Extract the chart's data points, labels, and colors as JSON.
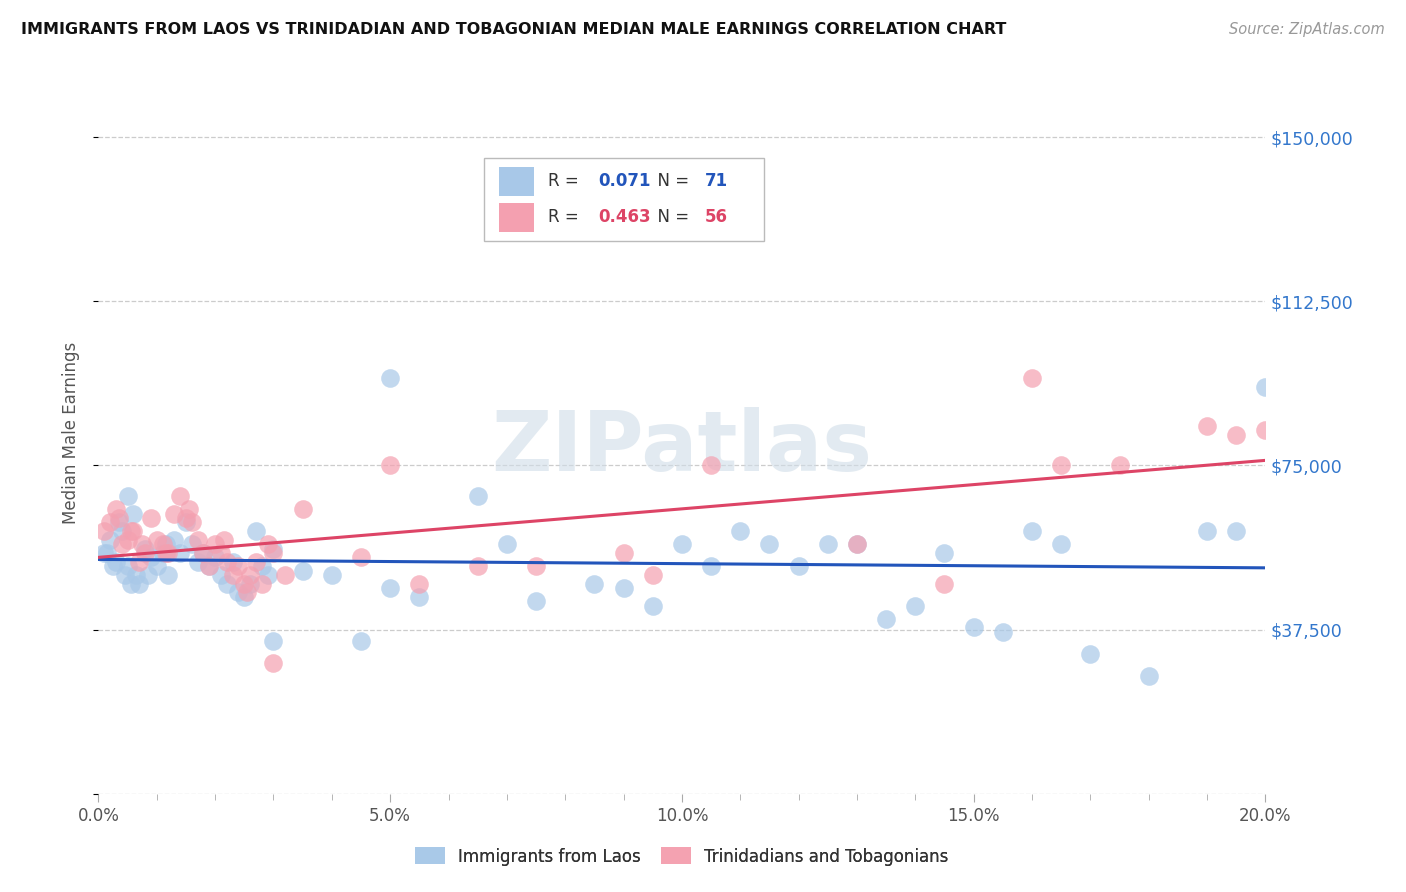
{
  "title": "IMMIGRANTS FROM LAOS VS TRINIDADIAN AND TOBAGONIAN MEDIAN MALE EARNINGS CORRELATION CHART",
  "source": "Source: ZipAtlas.com",
  "ylabel": "Median Male Earnings",
  "xlabel_ticks": [
    "0.0%",
    "5.0%",
    "10.0%",
    "15.0%",
    "20.0%"
  ],
  "xlabel_vals": [
    0.0,
    5.0,
    10.0,
    15.0,
    20.0
  ],
  "yticks": [
    0,
    37500,
    75000,
    112500,
    150000
  ],
  "ytick_labels": [
    "",
    "$37,500",
    "$75,000",
    "$112,500",
    "$150,000"
  ],
  "ylim": [
    0,
    165000
  ],
  "xlim": [
    0.0,
    20.0
  ],
  "blue_R": 0.071,
  "blue_N": 71,
  "pink_R": 0.463,
  "pink_N": 56,
  "blue_color": "#a8c8e8",
  "pink_color": "#f4a0b0",
  "blue_line_color": "#2255bb",
  "pink_line_color": "#dd4466",
  "legend_label_blue": "Immigrants from Laos",
  "legend_label_pink": "Trinidadians and Tobagonians",
  "title_color": "#111111",
  "source_color": "#999999",
  "ytick_color": "#3377cc",
  "grid_color": "#cccccc",
  "background_color": "#ffffff",
  "blue_x": [
    0.1,
    0.2,
    0.3,
    0.35,
    0.4,
    0.5,
    0.5,
    0.6,
    0.65,
    0.7,
    0.8,
    0.9,
    1.0,
    1.1,
    1.2,
    1.3,
    1.4,
    1.5,
    1.6,
    1.7,
    1.8,
    1.9,
    2.0,
    2.1,
    2.2,
    2.3,
    2.4,
    2.5,
    2.6,
    2.7,
    2.8,
    2.9,
    3.0,
    3.5,
    4.0,
    4.5,
    5.0,
    5.5,
    6.5,
    7.5,
    8.5,
    9.5,
    10.5,
    11.0,
    11.5,
    12.0,
    13.0,
    14.0,
    14.5,
    15.0,
    16.0,
    17.0,
    18.0,
    19.0,
    20.0,
    3.0,
    5.0,
    7.0,
    9.0,
    10.0,
    12.5,
    13.5,
    15.5,
    16.5,
    19.5,
    0.15,
    0.25,
    0.45,
    0.55,
    0.85,
    1.15
  ],
  "blue_y": [
    55000,
    58000,
    53000,
    62000,
    60000,
    52000,
    68000,
    64000,
    50000,
    48000,
    56000,
    54000,
    52000,
    55000,
    50000,
    58000,
    55000,
    62000,
    57000,
    53000,
    55000,
    52000,
    54000,
    50000,
    48000,
    53000,
    46000,
    45000,
    48000,
    60000,
    52000,
    50000,
    56000,
    51000,
    50000,
    35000,
    47000,
    45000,
    68000,
    44000,
    48000,
    43000,
    52000,
    60000,
    57000,
    52000,
    57000,
    43000,
    55000,
    38000,
    60000,
    32000,
    27000,
    60000,
    93000,
    35000,
    95000,
    57000,
    47000,
    57000,
    57000,
    40000,
    37000,
    57000,
    60000,
    55000,
    52000,
    50000,
    48000,
    50000,
    57000
  ],
  "pink_x": [
    0.1,
    0.2,
    0.3,
    0.4,
    0.5,
    0.6,
    0.7,
    0.8,
    0.9,
    1.0,
    1.1,
    1.2,
    1.3,
    1.4,
    1.5,
    1.6,
    1.7,
    1.8,
    1.9,
    2.0,
    2.1,
    2.2,
    2.3,
    2.4,
    2.5,
    2.6,
    2.7,
    2.8,
    2.9,
    3.0,
    3.2,
    3.5,
    4.5,
    5.5,
    6.5,
    7.5,
    9.5,
    10.5,
    14.5,
    16.0,
    17.5,
    19.0,
    19.5,
    20.0,
    0.35,
    0.55,
    0.75,
    1.15,
    1.55,
    2.15,
    2.55,
    5.0,
    9.0,
    13.0,
    16.5,
    3.0
  ],
  "pink_y": [
    60000,
    62000,
    65000,
    57000,
    58000,
    60000,
    53000,
    55000,
    63000,
    58000,
    57000,
    55000,
    64000,
    68000,
    63000,
    62000,
    58000,
    55000,
    52000,
    57000,
    55000,
    53000,
    50000,
    52000,
    48000,
    50000,
    53000,
    48000,
    57000,
    55000,
    50000,
    65000,
    54000,
    48000,
    52000,
    52000,
    50000,
    75000,
    48000,
    95000,
    75000,
    84000,
    82000,
    83000,
    63000,
    60000,
    57000,
    55000,
    65000,
    58000,
    46000,
    75000,
    55000,
    57000,
    75000,
    30000
  ]
}
